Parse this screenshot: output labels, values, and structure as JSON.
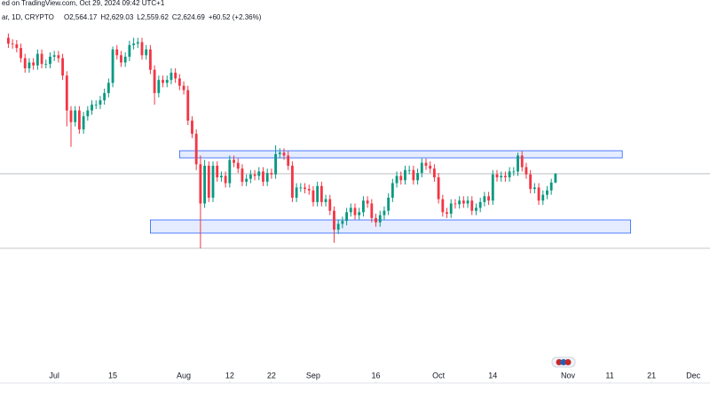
{
  "chart_data": {
    "type": "candlestick",
    "header": {
      "source": "ed on TradingView.com, Oct 29, 2024 09:42 UTC+1",
      "symbol": "ar, 1D, CRYPTO",
      "ohlc": [
        "O2,564.17",
        "H2,629.03",
        "L2,559.62",
        "C2,624.69",
        "+60.52 (+2.36%)"
      ]
    },
    "up_color": "#089981",
    "down_color": "#f23645",
    "x": [
      "2024-06-20",
      "2024-06-21",
      "2024-06-22",
      "2024-06-23",
      "2024-06-24",
      "2024-06-25",
      "2024-06-26",
      "2024-06-27",
      "2024-06-28",
      "2024-06-29",
      "2024-06-30",
      "2024-07-01",
      "2024-07-02",
      "2024-07-03",
      "2024-07-04",
      "2024-07-05",
      "2024-07-06",
      "2024-07-07",
      "2024-07-08",
      "2024-07-09",
      "2024-07-10",
      "2024-07-11",
      "2024-07-12",
      "2024-07-13",
      "2024-07-14",
      "2024-07-15",
      "2024-07-16",
      "2024-07-17",
      "2024-07-18",
      "2024-07-19",
      "2024-07-20",
      "2024-07-21",
      "2024-07-22",
      "2024-07-23",
      "2024-07-24",
      "2024-07-25",
      "2024-07-26",
      "2024-07-27",
      "2024-07-28",
      "2024-07-29",
      "2024-07-30",
      "2024-07-31",
      "2024-08-01",
      "2024-08-02",
      "2024-08-03",
      "2024-08-04",
      "2024-08-05",
      "2024-08-06",
      "2024-08-07",
      "2024-08-08",
      "2024-08-09",
      "2024-08-10",
      "2024-08-11",
      "2024-08-12",
      "2024-08-13",
      "2024-08-14",
      "2024-08-15",
      "2024-08-16",
      "2024-08-17",
      "2024-08-18",
      "2024-08-19",
      "2024-08-20",
      "2024-08-21",
      "2024-08-22",
      "2024-08-23",
      "2024-08-24",
      "2024-08-25",
      "2024-08-26",
      "2024-08-27",
      "2024-08-28",
      "2024-08-29",
      "2024-08-30",
      "2024-08-31",
      "2024-09-01",
      "2024-09-02",
      "2024-09-03",
      "2024-09-04",
      "2024-09-05",
      "2024-09-06",
      "2024-09-07",
      "2024-09-08",
      "2024-09-09",
      "2024-09-10",
      "2024-09-11",
      "2024-09-12",
      "2024-09-13",
      "2024-09-14",
      "2024-09-15",
      "2024-09-16",
      "2024-09-17",
      "2024-09-18",
      "2024-09-19",
      "2024-09-20",
      "2024-09-21",
      "2024-09-22",
      "2024-09-23",
      "2024-09-24",
      "2024-09-25",
      "2024-09-26",
      "2024-09-27",
      "2024-09-28",
      "2024-09-29",
      "2024-09-30",
      "2024-10-01",
      "2024-10-02",
      "2024-10-03",
      "2024-10-04",
      "2024-10-05",
      "2024-10-06",
      "2024-10-07",
      "2024-10-08",
      "2024-10-09",
      "2024-10-10",
      "2024-10-11",
      "2024-10-12",
      "2024-10-13",
      "2024-10-14",
      "2024-10-15",
      "2024-10-16",
      "2024-10-17",
      "2024-10-18",
      "2024-10-19",
      "2024-10-20",
      "2024-10-21",
      "2024-10-22",
      "2024-10-23",
      "2024-10-24",
      "2024-10-25",
      "2024-10-26",
      "2024-10-27",
      "2024-10-28",
      "2024-10-29"
    ],
    "open": [
      3560,
      3520,
      3515,
      3490,
      3420,
      3350,
      3390,
      3370,
      3450,
      3380,
      3380,
      3430,
      3440,
      3420,
      3300,
      3060,
      2980,
      3060,
      2930,
      3020,
      3060,
      3100,
      3100,
      3130,
      3180,
      3250,
      3480,
      3440,
      3390,
      3430,
      3510,
      3520,
      3530,
      3440,
      3480,
      3340,
      3180,
      3270,
      3250,
      3270,
      3320,
      3280,
      3230,
      3200,
      2990,
      2900,
      2690,
      2420,
      2680,
      2460,
      2680,
      2600,
      2610,
      2560,
      2720,
      2700,
      2660,
      2570,
      2590,
      2620,
      2610,
      2640,
      2570,
      2630,
      2620,
      2760,
      2770,
      2750,
      2680,
      2460,
      2530,
      2530,
      2520,
      2510,
      2430,
      2540,
      2430,
      2450,
      2370,
      2240,
      2280,
      2300,
      2360,
      2390,
      2340,
      2360,
      2440,
      2420,
      2320,
      2290,
      2340,
      2370,
      2460,
      2560,
      2610,
      2580,
      2650,
      2650,
      2580,
      2630,
      2700,
      2680,
      2660,
      2600,
      2450,
      2360,
      2350,
      2420,
      2415,
      2440,
      2420,
      2440,
      2370,
      2390,
      2430,
      2470,
      2440,
      2620,
      2600,
      2610,
      2600,
      2640,
      2640,
      2750,
      2670,
      2620,
      2520,
      2530,
      2440,
      2480,
      2510,
      2564.17
    ],
    "high": [
      3590,
      3550,
      3545,
      3520,
      3450,
      3420,
      3420,
      3480,
      3480,
      3410,
      3460,
      3470,
      3470,
      3450,
      3330,
      3090,
      3090,
      3090,
      3050,
      3090,
      3130,
      3130,
      3160,
      3210,
      3280,
      3500,
      3510,
      3470,
      3460,
      3540,
      3560,
      3560,
      3560,
      3510,
      3510,
      3370,
      3300,
      3300,
      3300,
      3350,
      3350,
      3310,
      3260,
      3230,
      3020,
      2930,
      2750,
      2720,
      2710,
      2710,
      2710,
      2640,
      2640,
      2750,
      2750,
      2730,
      2690,
      2620,
      2650,
      2650,
      2670,
      2670,
      2660,
      2660,
      2820,
      2800,
      2800,
      2780,
      2710,
      2560,
      2560,
      2560,
      2550,
      2540,
      2570,
      2570,
      2480,
      2480,
      2400,
      2310,
      2330,
      2390,
      2420,
      2420,
      2390,
      2470,
      2470,
      2450,
      2350,
      2370,
      2400,
      2490,
      2590,
      2640,
      2640,
      2680,
      2680,
      2680,
      2660,
      2730,
      2730,
      2710,
      2690,
      2630,
      2480,
      2390,
      2450,
      2450,
      2470,
      2470,
      2470,
      2470,
      2420,
      2460,
      2500,
      2500,
      2650,
      2650,
      2640,
      2640,
      2670,
      2670,
      2770,
      2780,
      2700,
      2650,
      2560,
      2560,
      2510,
      2540,
      2590,
      2629.03
    ],
    "low": [
      3490,
      3485,
      3460,
      3390,
      3320,
      3320,
      3340,
      3340,
      3350,
      3350,
      3350,
      3400,
      3390,
      3270,
      2950,
      2810,
      2950,
      2900,
      2900,
      2990,
      3030,
      3070,
      3070,
      3100,
      3150,
      3220,
      3410,
      3360,
      3360,
      3400,
      3480,
      3490,
      3410,
      3410,
      3310,
      3100,
      3150,
      3220,
      3220,
      3240,
      3250,
      3200,
      3170,
      2960,
      2870,
      2650,
      2111,
      2390,
      2430,
      2430,
      2570,
      2570,
      2530,
      2530,
      2670,
      2630,
      2540,
      2540,
      2560,
      2580,
      2580,
      2540,
      2540,
      2590,
      2590,
      2730,
      2720,
      2650,
      2430,
      2430,
      2500,
      2490,
      2480,
      2400,
      2400,
      2400,
      2400,
      2340,
      2150,
      2210,
      2250,
      2270,
      2330,
      2310,
      2310,
      2330,
      2390,
      2290,
      2260,
      2260,
      2310,
      2340,
      2430,
      2530,
      2550,
      2550,
      2620,
      2550,
      2550,
      2600,
      2650,
      2630,
      2570,
      2420,
      2330,
      2320,
      2320,
      2385,
      2385,
      2390,
      2390,
      2340,
      2340,
      2360,
      2400,
      2410,
      2410,
      2570,
      2570,
      2570,
      2570,
      2610,
      2610,
      2640,
      2590,
      2490,
      2490,
      2410,
      2410,
      2450,
      2480,
      2559.62
    ],
    "close": [
      3520,
      3515,
      3490,
      3420,
      3350,
      3390,
      3370,
      3450,
      3380,
      3380,
      3430,
      3440,
      3420,
      3300,
      3060,
      2980,
      3060,
      2930,
      3020,
      3060,
      3100,
      3100,
      3130,
      3180,
      3250,
      3480,
      3440,
      3390,
      3430,
      3510,
      3520,
      3530,
      3440,
      3480,
      3340,
      3180,
      3270,
      3250,
      3270,
      3320,
      3280,
      3230,
      3200,
      2990,
      2900,
      2690,
      2420,
      2680,
      2460,
      2680,
      2600,
      2610,
      2560,
      2720,
      2700,
      2660,
      2570,
      2590,
      2620,
      2610,
      2640,
      2570,
      2630,
      2620,
      2760,
      2770,
      2750,
      2680,
      2460,
      2530,
      2530,
      2520,
      2510,
      2430,
      2540,
      2430,
      2450,
      2370,
      2240,
      2280,
      2300,
      2360,
      2390,
      2340,
      2360,
      2440,
      2420,
      2320,
      2290,
      2340,
      2370,
      2460,
      2560,
      2610,
      2580,
      2650,
      2650,
      2580,
      2630,
      2700,
      2680,
      2660,
      2600,
      2450,
      2360,
      2350,
      2420,
      2415,
      2440,
      2420,
      2440,
      2370,
      2390,
      2430,
      2470,
      2440,
      2620,
      2600,
      2610,
      2600,
      2640,
      2640,
      2750,
      2670,
      2620,
      2520,
      2530,
      2440,
      2480,
      2510,
      2564.17,
      2624.69
    ],
    "xlim": [
      "2024-06-18",
      "2024-12-05"
    ],
    "ylim": [
      1197,
      3820
    ],
    "xticks": [
      {
        "value": "2024-07-01",
        "label": "Jul"
      },
      {
        "value": "2024-07-15",
        "label": "15"
      },
      {
        "value": "2024-08-01",
        "label": "Aug"
      },
      {
        "value": "2024-08-12",
        "label": "12"
      },
      {
        "value": "2024-08-22",
        "label": "22"
      },
      {
        "value": "2024-09-01",
        "label": "Sep"
      },
      {
        "value": "2024-09-16",
        "label": "16"
      },
      {
        "value": "2024-10-01",
        "label": "Oct"
      },
      {
        "value": "2024-10-14",
        "label": "14"
      },
      {
        "value": "2024-11-01",
        "label": "Nov"
      },
      {
        "value": "2024-11-11",
        "label": "11"
      },
      {
        "value": "2024-11-21",
        "label": "21"
      },
      {
        "value": "2024-12-01",
        "label": "Dec"
      }
    ],
    "zones": [
      {
        "x0": "2024-07-31",
        "x1": "2024-11-14",
        "y0": 2734,
        "y1": 2783
      },
      {
        "x0": "2024-07-24",
        "x1": "2024-11-16",
        "y0": 2216,
        "y1": 2307
      }
    ],
    "zone_color": "#2962ff",
    "hlines": [
      2624.69,
      2112
    ],
    "hline_color": "#b2b5be"
  }
}
